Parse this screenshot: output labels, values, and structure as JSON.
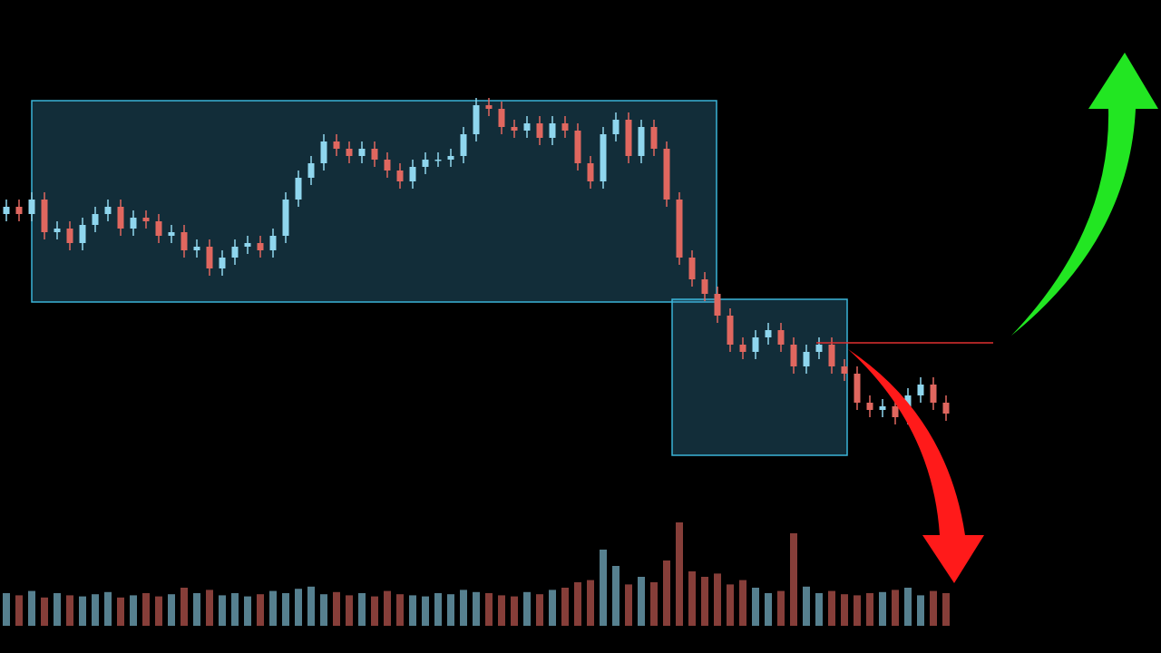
{
  "chart_data": {
    "type": "candlestick",
    "open": [
      66,
      68,
      66,
      70,
      61,
      62,
      58,
      63,
      66,
      68,
      62,
      65,
      64,
      60,
      61,
      56,
      57,
      51,
      54,
      57,
      58,
      56,
      60,
      70,
      76,
      80,
      86,
      84,
      82,
      84,
      81,
      78,
      75,
      79,
      81,
      81,
      82,
      88,
      96,
      95,
      90,
      89,
      91,
      87,
      91,
      89,
      80,
      75,
      88,
      92,
      82,
      90,
      84,
      70,
      54,
      48,
      44,
      38,
      30,
      28,
      32,
      34,
      30,
      24,
      28,
      30,
      24,
      22,
      14,
      12,
      13,
      10,
      16,
      19,
      14
    ],
    "high": [
      70,
      70,
      72,
      72,
      64,
      64,
      65,
      68,
      70,
      70,
      67,
      67,
      66,
      63,
      63,
      59,
      59,
      56,
      59,
      60,
      60,
      62,
      72,
      78,
      82,
      88,
      88,
      86,
      86,
      86,
      83,
      80,
      81,
      83,
      83,
      84,
      90,
      98,
      98,
      97,
      92,
      93,
      93,
      93,
      93,
      91,
      82,
      90,
      94,
      94,
      92,
      92,
      86,
      72,
      56,
      50,
      46,
      40,
      32,
      34,
      36,
      36,
      32,
      30,
      32,
      32,
      26,
      24,
      16,
      15,
      15,
      18,
      21,
      21,
      16
    ],
    "low": [
      64,
      64,
      64,
      59,
      59,
      56,
      56,
      61,
      64,
      60,
      60,
      62,
      58,
      58,
      54,
      54,
      49,
      49,
      52,
      55,
      54,
      54,
      58,
      68,
      74,
      78,
      82,
      80,
      80,
      79,
      76,
      73,
      73,
      77,
      79,
      79,
      80,
      86,
      93,
      88,
      87,
      87,
      85,
      85,
      87,
      78,
      73,
      73,
      86,
      80,
      80,
      82,
      68,
      52,
      46,
      42,
      36,
      28,
      26,
      26,
      30,
      28,
      22,
      22,
      26,
      22,
      20,
      12,
      10,
      10,
      8,
      8,
      14,
      12,
      9
    ],
    "close": [
      68,
      66,
      70,
      61,
      62,
      58,
      63,
      66,
      68,
      62,
      65,
      64,
      60,
      61,
      56,
      57,
      51,
      54,
      57,
      58,
      56,
      60,
      70,
      76,
      80,
      86,
      84,
      82,
      84,
      81,
      78,
      75,
      79,
      81,
      81,
      82,
      88,
      96,
      95,
      90,
      89,
      91,
      87,
      91,
      89,
      80,
      75,
      88,
      92,
      82,
      90,
      84,
      70,
      54,
      48,
      44,
      38,
      30,
      28,
      32,
      34,
      30,
      24,
      28,
      30,
      24,
      22,
      14,
      12,
      13,
      10,
      16,
      19,
      14,
      11
    ],
    "volume": [
      30,
      28,
      32,
      26,
      30,
      28,
      27,
      29,
      31,
      26,
      28,
      30,
      27,
      29,
      35,
      30,
      33,
      28,
      30,
      27,
      29,
      32,
      30,
      34,
      36,
      29,
      31,
      28,
      30,
      27,
      32,
      29,
      28,
      27,
      30,
      29,
      33,
      31,
      30,
      28,
      27,
      31,
      29,
      33,
      35,
      40,
      42,
      70,
      55,
      38,
      45,
      40,
      60,
      95,
      50,
      45,
      48,
      38,
      42,
      35,
      30,
      32,
      85,
      36,
      30,
      32,
      29,
      28,
      30,
      31,
      33,
      35,
      28,
      32,
      30
    ],
    "ylim": [
      0,
      100
    ],
    "volume_ylim": [
      0,
      100
    ],
    "up_color": "#8fd6ee",
    "down_color": "#e0675f"
  }
}
